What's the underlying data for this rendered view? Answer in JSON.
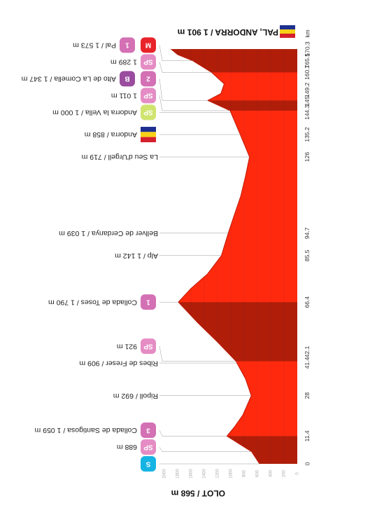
{
  "chart_data": {
    "type": "area",
    "start": "OLOT / 568 m",
    "finish": "PAL, ANDORRA / 1 901 m",
    "x_unit": "km",
    "color": "#ff2a0e",
    "highlight_color": "#b01e0a",
    "highlights": [
      [
        0,
        11.4
      ],
      [
        42.1,
        66.4
      ],
      [
        145,
        149.2
      ],
      [
        160.7,
        170.3
      ]
    ],
    "xlim": [
      0,
      170.3
    ],
    "xticks": [
      0,
      11.4,
      28,
      41.4,
      42.1,
      66.4,
      85.5,
      94.7,
      126,
      135.2,
      144.3,
      145,
      149.2,
      160.7,
      165.5,
      170.3
    ],
    "ylim": [
      0,
      2000
    ],
    "yticks": [
      0,
      200,
      400,
      600,
      800,
      1000,
      1200,
      1400,
      1600,
      1800,
      2000
    ],
    "grid": true,
    "series": [
      {
        "name": "Elevation",
        "x": [
          0,
          5,
          11.4,
          15,
          20,
          28,
          35,
          41.4,
          42.1,
          50,
          58,
          66.4,
          72,
          78,
          85.5,
          94.7,
          102,
          110,
          118,
          126,
          135.2,
          144.3,
          145,
          149.2,
          152,
          156,
          160.7,
          165.5,
          168,
          170.3
        ],
        "values": [
          568,
          688,
          1059,
          950,
          820,
          692,
          780,
          909,
          921,
          1200,
          1500,
          1790,
          1600,
          1350,
          1142,
          1039,
          950,
          850,
          780,
          719,
          858,
          1000,
          1011,
          1347,
          1150,
          1100,
          1289,
          1573,
          1800,
          1901
        ]
      }
    ],
    "waypoints": [
      {
        "x": 0,
        "badges": [
          {
            "text": "S",
            "color": "#16b4e3"
          }
        ]
      },
      {
        "x": 5,
        "label": "688 m",
        "badges": [
          {
            "text": "SP",
            "color": "#e58cc4"
          }
        ]
      },
      {
        "x": 11.4,
        "label": "Collada de Santigosa / 1 059 m",
        "badges": [
          {
            "text": "3",
            "color": "#d470b4"
          }
        ]
      },
      {
        "x": 28,
        "label": "Ripoll / 692 m",
        "badges": []
      },
      {
        "x": 41.4,
        "label": "Ribes de Freser / 909 m",
        "badges": []
      },
      {
        "x": 42.1,
        "label": "921 m",
        "badges": [
          {
            "text": "SP",
            "color": "#e58cc4"
          }
        ]
      },
      {
        "x": 66.4,
        "label": "Collada de Toses / 1 790 m",
        "badges": [
          {
            "text": "1",
            "color": "#d470b4"
          }
        ]
      },
      {
        "x": 85.5,
        "label": "Alp / 1 142 m",
        "badges": []
      },
      {
        "x": 94.7,
        "label": "Bellver de Cerdanya / 1 039 m",
        "badges": []
      },
      {
        "x": 126,
        "label": "La Seu d'Urgell / 719 m",
        "badges": []
      },
      {
        "x": 135.2,
        "label": "Andorra / 858 m",
        "badges": [
          {
            "flag": "andorra"
          }
        ]
      },
      {
        "x": 144.3,
        "label": "Andorra la Vella / 1 000 m",
        "badges": [
          {
            "text": "SP",
            "color": "#cfe46e"
          }
        ]
      },
      {
        "x": 145,
        "label": "1 011 m",
        "badges": [
          {
            "text": "SP",
            "color": "#e58cc4"
          }
        ]
      },
      {
        "x": 149.2,
        "label": "Alto de La Comella / 1 347 m",
        "badges": [
          {
            "text": "2",
            "color": "#d470b4"
          },
          {
            "text": "B",
            "color": "#9a4c9f"
          }
        ]
      },
      {
        "x": 160.7,
        "label": "1 289 m",
        "badges": [
          {
            "text": "SP",
            "color": "#e58cc4"
          }
        ]
      },
      {
        "x": 165.5,
        "label": "Pal / 1 573 m",
        "badges": [
          {
            "text": "M",
            "color": "#e8232a"
          },
          {
            "text": "1",
            "color": "#d470b4"
          }
        ]
      }
    ]
  }
}
